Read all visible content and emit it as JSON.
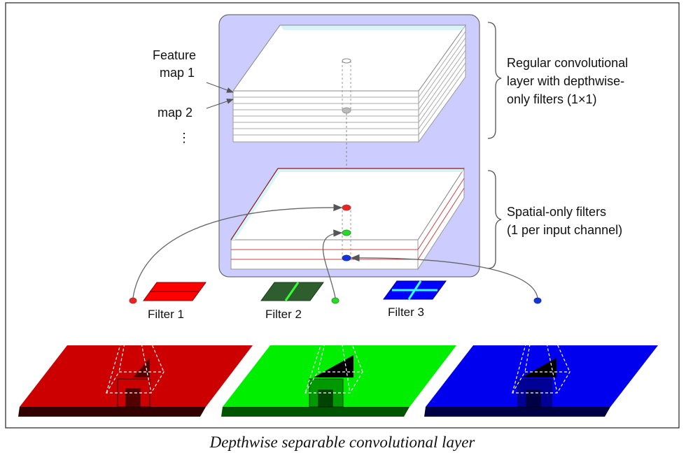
{
  "caption": "Depthwise separable convolutional layer",
  "feature_map_labels": {
    "line1": "Feature",
    "line2": "map 1",
    "line3": "map 2",
    "ellipsis": "⋮"
  },
  "regular_layer_label": [
    "Regular convolutional",
    "layer with depthwise-",
    "only filters (1×1)"
  ],
  "spatial_layer_label": [
    "Spatial-only filters",
    "(1 per input channel)"
  ],
  "filters": [
    {
      "label": "Filter 1",
      "color": "#ff0000"
    },
    {
      "label": "Filter 2",
      "color": "#2e5e2e"
    },
    {
      "label": "Filter 3",
      "color": "#0000ff"
    }
  ],
  "input_channels": [
    {
      "color": "#cc0000",
      "dark": "#330000"
    },
    {
      "color": "#00ee00",
      "dark": "#004400"
    },
    {
      "color": "#0000ee",
      "dark": "#000044"
    }
  ],
  "colors": {
    "panel": "#ccccff",
    "slab_top": "#d8f4f8",
    "red_dot": "#ee2222",
    "green_dot": "#22dd22",
    "blue_dot": "#1133dd"
  }
}
